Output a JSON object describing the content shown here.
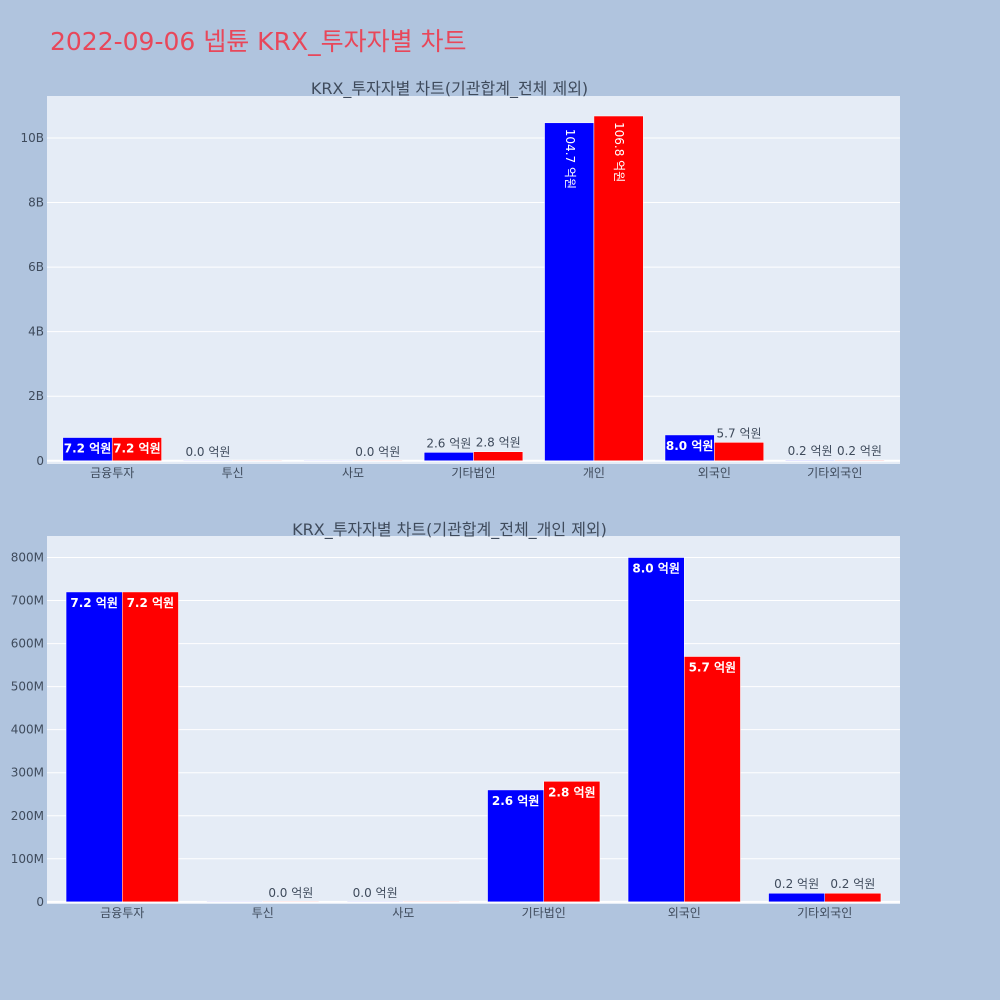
{
  "title": "2022-09-06 넵튠 KRX_투자자별 차트",
  "colors": {
    "series_a": "#0000ff",
    "series_b": "#ff0000",
    "background": "#b0c4de",
    "plot_background": "#e5ecf6",
    "title": "#e8475a"
  },
  "chart_data": [
    {
      "type": "bar",
      "title": "KRX_투자자별 차트(기관합계_전체 제외)",
      "categories": [
        "금융투자",
        "투신",
        "사모",
        "기타법인",
        "개인",
        "외국인",
        "기타외국인"
      ],
      "series": [
        {
          "values": [
            720000000,
            0,
            0,
            260000000,
            10470000000,
            800000000,
            20000000
          ],
          "labels": [
            "7.2 억원",
            "0.0 억원",
            "",
            "2.6 억원",
            "104.7 억원",
            "8.0 억원",
            "0.2 억원"
          ]
        },
        {
          "values": [
            720000000,
            0,
            0,
            280000000,
            10680000000,
            570000000,
            20000000
          ],
          "labels": [
            "7.2 억원",
            "",
            "0.0 억원",
            "2.8 억원",
            "106.8 억원",
            "5.7 억원",
            "0.2 억원"
          ]
        }
      ],
      "yticks": [
        0,
        2000000000,
        4000000000,
        6000000000,
        8000000000,
        10000000000
      ],
      "ytick_labels": [
        "0",
        "2B",
        "4B",
        "6B",
        "8B",
        "10B"
      ],
      "ylim": [
        -100000000,
        11300000000
      ],
      "grid": true
    },
    {
      "type": "bar",
      "title": "KRX_투자자별 차트(기관합계_전체_개인 제외)",
      "categories": [
        "금융투자",
        "투신",
        "사모",
        "기타법인",
        "외국인",
        "기타외국인"
      ],
      "series": [
        {
          "values": [
            720000000,
            0,
            0,
            260000000,
            800000000,
            20000000
          ],
          "labels": [
            "7.2 억원",
            "",
            "0.0 억원",
            "2.6 억원",
            "8.0 억원",
            "0.2 억원"
          ]
        },
        {
          "values": [
            720000000,
            0,
            0,
            280000000,
            570000000,
            20000000
          ],
          "labels": [
            "7.2 억원",
            "0.0 억원",
            "",
            "2.8 억원",
            "5.7 억원",
            "0.2 억원"
          ]
        }
      ],
      "yticks": [
        0,
        100000000,
        200000000,
        300000000,
        400000000,
        500000000,
        600000000,
        700000000,
        800000000
      ],
      "ytick_labels": [
        "0",
        "100M",
        "200M",
        "300M",
        "400M",
        "500M",
        "600M",
        "700M",
        "800M"
      ],
      "ylim": [
        -5000000,
        850000000
      ],
      "grid": true
    }
  ]
}
